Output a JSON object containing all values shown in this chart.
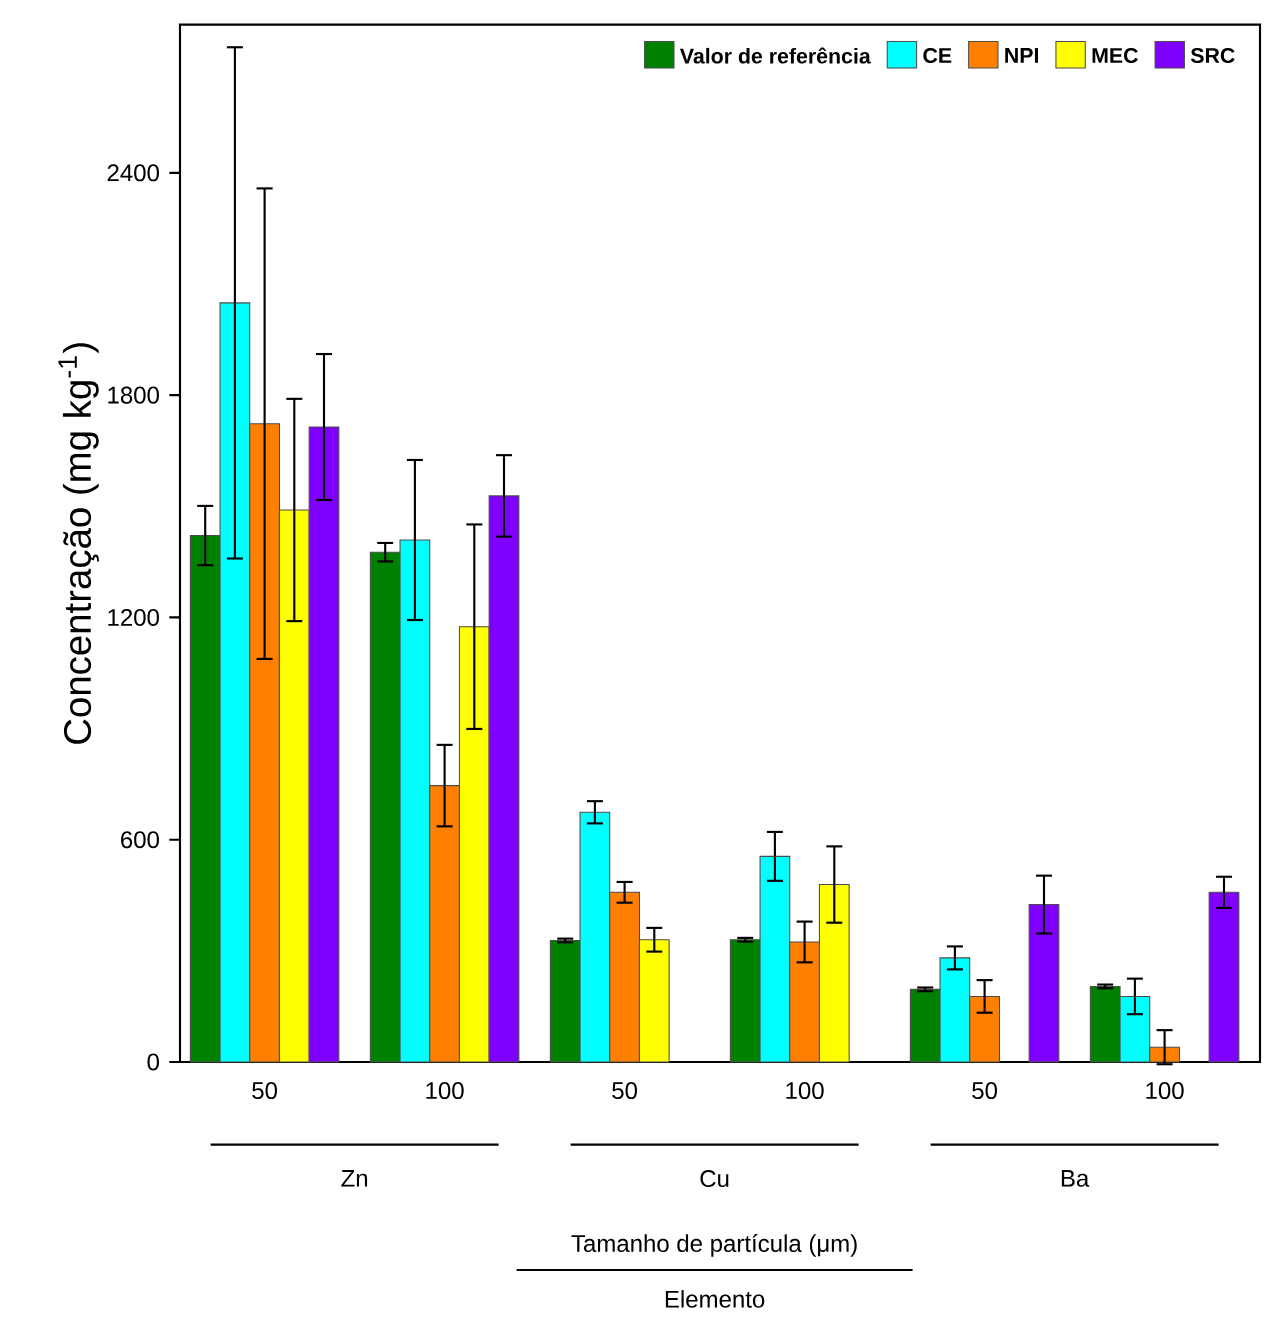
{
  "chart_data": {
    "type": "bar",
    "ylabel": "Concentração (mg kg$^{-1}$)",
    "annotations": [
      "Zn",
      "Cu",
      "Ba",
      "Tamanho de partícula (μm)",
      "Elemento"
    ],
    "categories": [
      "50",
      "100",
      "50",
      "100",
      "50",
      "100"
    ],
    "ylim": [
      0,
      2800
    ],
    "yticks": [
      0,
      600,
      1200,
      1800,
      2400
    ],
    "legend": "top right",
    "series": [
      {
        "name": "Valor de referência",
        "color": "#008000",
        "values": [
          1421,
          1376,
          328,
          330,
          196,
          204
        ],
        "errors": [
          80,
          25,
          5,
          5,
          5,
          5
        ]
      },
      {
        "name": "CE",
        "color": "#00ffff",
        "values": [
          2049,
          1409,
          674,
          555,
          281,
          177
        ],
        "errors": [
          690,
          216,
          30,
          66,
          31,
          48
        ]
      },
      {
        "name": "NPI",
        "color": "#ff8000",
        "values": [
          1723,
          746,
          458,
          324,
          177,
          40
        ],
        "errors": [
          635,
          110,
          28,
          55,
          44,
          46
        ]
      },
      {
        "name": "MEC",
        "color": "#ffff00",
        "values": [
          1490,
          1175,
          330,
          479,
          null,
          null
        ],
        "errors": [
          300,
          276,
          32,
          103,
          null,
          null
        ]
      },
      {
        "name": "SRC",
        "color": "#8000ff",
        "values": [
          1714,
          1528,
          null,
          null,
          425,
          458
        ],
        "errors": [
          197,
          110,
          null,
          null,
          78,
          42
        ]
      }
    ]
  }
}
